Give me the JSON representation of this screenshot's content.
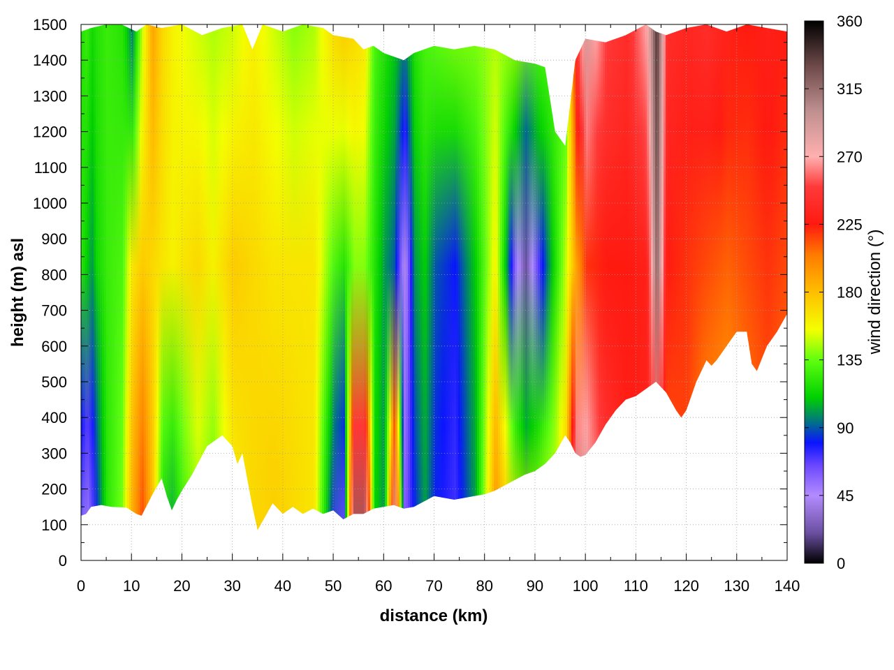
{
  "chart_data": {
    "type": "heatmap",
    "title": "",
    "xlabel": "distance (km)",
    "ylabel": "height (m) asl",
    "xlim": [
      0,
      140
    ],
    "ylim": [
      0,
      1500
    ],
    "x_ticks": [
      0,
      10,
      20,
      30,
      40,
      50,
      60,
      70,
      80,
      90,
      100,
      110,
      120,
      130,
      140
    ],
    "y_ticks": [
      0,
      100,
      200,
      300,
      400,
      500,
      600,
      700,
      800,
      900,
      1000,
      1100,
      1200,
      1300,
      1400,
      1500
    ],
    "grid": true,
    "colorbar": {
      "label": "wind direction (°)",
      "range": [
        0,
        360
      ],
      "ticks": [
        0,
        45,
        90,
        135,
        180,
        225,
        270,
        315,
        360
      ],
      "placement": "right",
      "colors": [
        {
          "value": 0,
          "color": "#000000"
        },
        {
          "value": 20,
          "color": "#6a4fa0"
        },
        {
          "value": 45,
          "color": "#b38cff"
        },
        {
          "value": 65,
          "color": "#6b47ff"
        },
        {
          "value": 80,
          "color": "#0a14ff"
        },
        {
          "value": 95,
          "color": "#007a7a"
        },
        {
          "value": 110,
          "color": "#00d000"
        },
        {
          "value": 135,
          "color": "#60ff10"
        },
        {
          "value": 155,
          "color": "#f4ff00"
        },
        {
          "value": 180,
          "color": "#ffbe00"
        },
        {
          "value": 205,
          "color": "#ff7a00"
        },
        {
          "value": 225,
          "color": "#ff1a10"
        },
        {
          "value": 250,
          "color": "#ff3a3a"
        },
        {
          "value": 270,
          "color": "#ffb0b0"
        },
        {
          "value": 300,
          "color": "#c09090"
        },
        {
          "value": 330,
          "color": "#6e4a4a"
        },
        {
          "value": 360,
          "color": "#000000"
        }
      ]
    },
    "terrain_profile": {
      "x": [
        0,
        1,
        2,
        4,
        6,
        9,
        11,
        12,
        14,
        16,
        17,
        18,
        19,
        20,
        22,
        25,
        28,
        30,
        31,
        32,
        34,
        35,
        36,
        38,
        40,
        42,
        44,
        46,
        48,
        50,
        52,
        54,
        56,
        58,
        60,
        62,
        64,
        66,
        68,
        70,
        72,
        74,
        76,
        78,
        80,
        82,
        84,
        86,
        88,
        90,
        92,
        94,
        96,
        97,
        98,
        99,
        100,
        102,
        104,
        106,
        108,
        110,
        112,
        114,
        116,
        118,
        119,
        120,
        122,
        124,
        125,
        126,
        128,
        130,
        132,
        133,
        134,
        136,
        138,
        140
      ],
      "height": [
        125,
        130,
        150,
        155,
        150,
        148,
        130,
        125,
        180,
        230,
        180,
        140,
        170,
        195,
        240,
        320,
        350,
        320,
        270,
        300,
        150,
        85,
        110,
        160,
        130,
        150,
        130,
        145,
        130,
        140,
        115,
        130,
        130,
        145,
        150,
        155,
        145,
        150,
        165,
        180,
        175,
        170,
        175,
        180,
        185,
        195,
        210,
        225,
        240,
        250,
        270,
        300,
        350,
        330,
        300,
        290,
        295,
        330,
        380,
        420,
        450,
        460,
        480,
        500,
        470,
        420,
        400,
        420,
        500,
        560,
        545,
        560,
        600,
        640,
        640,
        550,
        530,
        600,
        640,
        690
      ]
    },
    "upper_boundary": {
      "x": [
        0,
        2,
        5,
        8,
        11,
        13,
        16,
        20,
        24,
        28,
        32,
        34,
        36,
        40,
        44,
        48,
        50,
        54,
        56,
        58,
        60,
        62,
        64,
        66,
        70,
        74,
        78,
        82,
        86,
        90,
        92,
        94,
        96,
        98,
        100,
        104,
        108,
        112,
        114,
        116,
        120,
        124,
        128,
        132,
        136,
        140
      ],
      "height": [
        1480,
        1490,
        1500,
        1500,
        1480,
        1500,
        1490,
        1500,
        1470,
        1490,
        1500,
        1430,
        1500,
        1480,
        1500,
        1490,
        1470,
        1460,
        1430,
        1440,
        1420,
        1410,
        1400,
        1420,
        1440,
        1430,
        1440,
        1430,
        1400,
        1390,
        1380,
        1200,
        1160,
        1400,
        1460,
        1450,
        1470,
        1500,
        1480,
        1470,
        1490,
        1500,
        1480,
        1500,
        1490,
        1480
      ]
    },
    "wind_direction_profile": {
      "x": [
        0,
        1,
        2,
        3,
        5,
        8,
        10,
        12,
        14,
        16,
        18,
        20,
        23,
        26,
        30,
        34,
        38,
        42,
        46,
        50,
        52,
        54,
        56,
        58,
        60,
        62,
        64,
        66,
        68,
        70,
        74,
        78,
        82,
        86,
        88,
        90,
        94,
        96,
        98,
        100,
        104,
        108,
        112,
        114,
        116,
        120,
        124,
        128,
        132,
        136,
        140
      ],
      "low_level_deg": [
        50,
        40,
        60,
        80,
        120,
        140,
        190,
        220,
        180,
        110,
        100,
        120,
        140,
        130,
        160,
        170,
        175,
        170,
        165,
        70,
        60,
        320,
        320,
        110,
        100,
        300,
        60,
        80,
        100,
        80,
        70,
        100,
        200,
        170,
        160,
        150,
        160,
        180,
        310,
        300,
        250,
        230,
        230,
        220,
        210,
        215,
        190,
        180,
        200,
        210,
        200
      ],
      "mid_level_deg": [
        120,
        110,
        100,
        115,
        125,
        130,
        165,
        175,
        170,
        165,
        160,
        165,
        170,
        160,
        175,
        170,
        165,
        165,
        165,
        130,
        120,
        140,
        140,
        120,
        100,
        90,
        40,
        100,
        110,
        90,
        80,
        110,
        160,
        55,
        20,
        60,
        120,
        150,
        190,
        220,
        225,
        225,
        230,
        320,
        225,
        220,
        215,
        210,
        215,
        220,
        215
      ],
      "upper_level_deg": [
        120,
        125,
        115,
        120,
        125,
        120,
        95,
        150,
        190,
        170,
        160,
        155,
        150,
        145,
        150,
        160,
        150,
        140,
        145,
        170,
        175,
        170,
        165,
        130,
        120,
        110,
        100,
        120,
        130,
        135,
        140,
        140,
        145,
        145,
        140,
        135,
        130,
        125,
        240,
        290,
        250,
        240,
        270,
        340,
        240,
        235,
        240,
        230,
        225,
        230,
        225
      ]
    }
  }
}
